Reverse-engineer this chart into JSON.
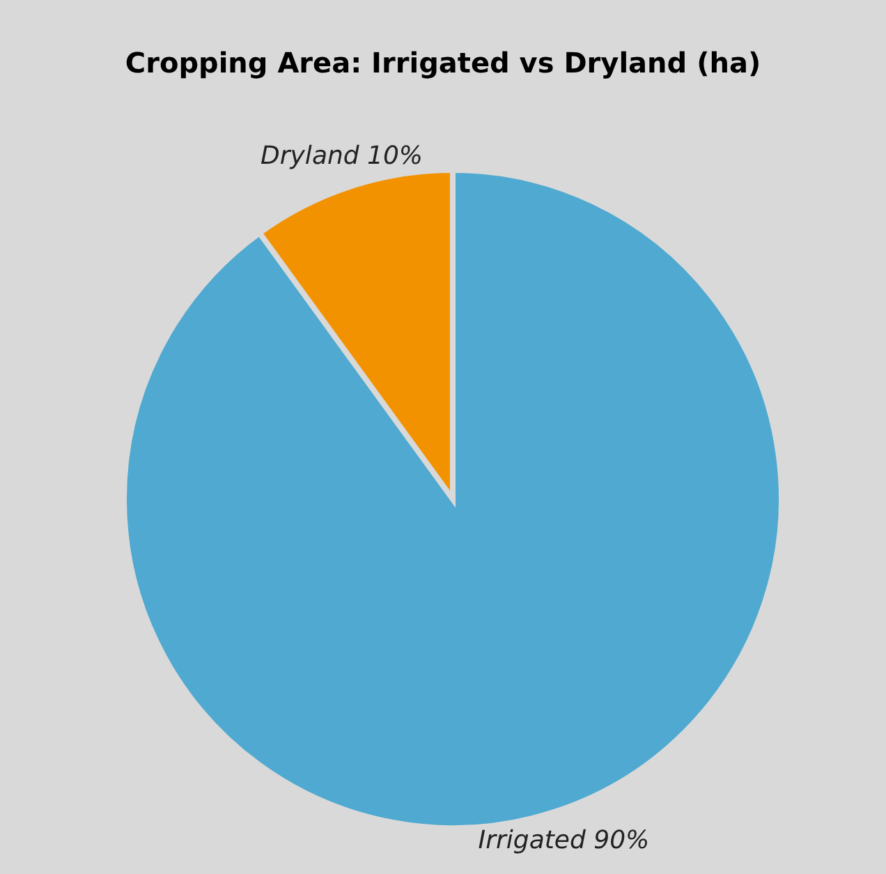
{
  "chart_data": {
    "type": "pie",
    "title": "Cropping Area: Irrigated vs Dryland (ha)",
    "categories": [
      "Irrigated",
      "Dryland"
    ],
    "values": [
      90,
      10
    ],
    "value_labels": [
      "90%",
      "10%"
    ],
    "colors": [
      "#4fa9d0",
      "#f39200"
    ]
  }
}
